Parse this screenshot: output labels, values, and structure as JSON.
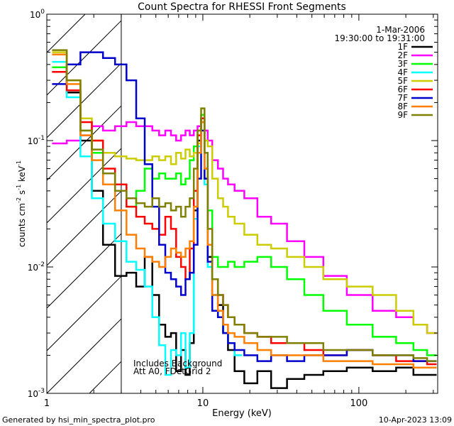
{
  "chart_data": {
    "type": "line",
    "title": "Count Spectra for RHESSI Front Segments",
    "xlabel": "Energy (keV)",
    "ylabel_parts": [
      "counts cm",
      "-2",
      " s",
      "-1",
      " keV",
      "-1"
    ],
    "xscale": "log",
    "yscale": "log",
    "xlim": [
      1,
      320
    ],
    "ylim": [
      0.001,
      1
    ],
    "x_ticks": [
      {
        "value": 1,
        "label": "1"
      },
      {
        "value": 10,
        "label": "10"
      },
      {
        "value": 100,
        "label": "100"
      }
    ],
    "y_ticks": [
      {
        "value": 1,
        "base": "10",
        "exp": "0"
      },
      {
        "value": 0.1,
        "base": "10",
        "exp": "-1"
      },
      {
        "value": 0.01,
        "base": "10",
        "exp": "-2"
      },
      {
        "value": 0.001,
        "base": "10",
        "exp": "-3"
      }
    ],
    "hatched_region": {
      "from": 1,
      "to": 3
    },
    "date": "1-Mar-2006",
    "time_range": "19:30:00 to 19:31:00",
    "annotations": [
      "Includes Background",
      "Att A0, FDetGrid 2"
    ],
    "series": [
      {
        "name": "1F",
        "color": "#000000",
        "x": [
          1.2,
          1.5,
          1.8,
          2.1,
          2.5,
          3,
          3.5,
          4,
          4.5,
          5,
          5.5,
          6,
          6.5,
          7,
          7.5,
          8,
          8.5,
          9,
          9.5,
          10,
          10.5,
          11,
          12,
          13,
          14,
          15,
          17,
          20,
          25,
          30,
          40,
          50,
          70,
          100,
          150,
          200,
          250,
          300
        ],
        "y": [
          0.35,
          0.24,
          0.1,
          0.04,
          0.015,
          0.0085,
          0.009,
          0.007,
          0.012,
          0.006,
          0.0035,
          0.0028,
          0.003,
          0.0015,
          0.0022,
          0.0014,
          0.0025,
          0.028,
          0.1,
          0.15,
          0.05,
          0.012,
          0.006,
          0.005,
          0.003,
          0.0022,
          0.0015,
          0.0012,
          0.0015,
          0.0011,
          0.0013,
          0.0014,
          0.0015,
          0.0016,
          0.0015,
          0.0016,
          0.0014,
          0.0014
        ]
      },
      {
        "name": "2F",
        "color": "#ff00ff",
        "x": [
          1.2,
          1.5,
          1.8,
          2.1,
          2.5,
          3,
          3.5,
          4,
          4.5,
          5,
          5.5,
          6,
          6.5,
          7,
          7.5,
          8,
          8.5,
          9,
          9.5,
          10,
          10.5,
          11,
          12,
          13,
          14,
          15,
          17,
          20,
          25,
          30,
          40,
          50,
          70,
          100,
          150,
          200,
          250,
          300
        ],
        "y": [
          0.095,
          0.1,
          0.11,
          0.13,
          0.12,
          0.13,
          0.14,
          0.13,
          0.13,
          0.12,
          0.11,
          0.12,
          0.11,
          0.1,
          0.11,
          0.12,
          0.11,
          0.12,
          0.13,
          0.14,
          0.12,
          0.1,
          0.07,
          0.06,
          0.05,
          0.045,
          0.04,
          0.035,
          0.025,
          0.022,
          0.016,
          0.012,
          0.0085,
          0.006,
          0.0045,
          0.004,
          0.0035,
          0.003
        ]
      },
      {
        "name": "3F",
        "color": "#00ff00",
        "x": [
          1.2,
          1.5,
          1.8,
          2.1,
          2.5,
          3,
          3.5,
          4,
          4.5,
          5,
          5.5,
          6,
          6.5,
          7,
          7.5,
          8,
          8.5,
          9,
          9.5,
          10,
          10.5,
          11,
          12,
          13,
          14,
          15,
          17,
          20,
          25,
          30,
          40,
          50,
          70,
          100,
          150,
          200,
          250,
          300
        ],
        "y": [
          0.38,
          0.25,
          0.12,
          0.08,
          0.055,
          0.045,
          0.03,
          0.04,
          0.06,
          0.05,
          0.055,
          0.05,
          0.05,
          0.055,
          0.045,
          0.05,
          0.07,
          0.09,
          0.12,
          0.16,
          0.08,
          0.028,
          0.012,
          0.01,
          0.01,
          0.011,
          0.01,
          0.011,
          0.012,
          0.01,
          0.008,
          0.006,
          0.0045,
          0.0035,
          0.0028,
          0.0025,
          0.0022,
          0.002
        ]
      },
      {
        "name": "4F",
        "color": "#00ffff",
        "x": [
          1.2,
          1.5,
          1.8,
          2.1,
          2.5,
          3,
          3.5,
          4,
          4.5,
          5,
          5.5,
          6,
          6.5,
          7,
          7.5,
          8,
          8.5,
          9,
          9.5,
          10,
          10.5,
          11,
          12,
          13,
          14,
          15,
          17
        ],
        "y": [
          0.42,
          0.22,
          0.075,
          0.035,
          0.022,
          0.016,
          0.011,
          0.0095,
          0.007,
          0.004,
          0.0024,
          0.0014,
          0.0022,
          0.002,
          0.003,
          0.0016,
          0.003,
          0.024,
          0.09,
          0.14,
          0.045,
          0.01,
          0.006,
          0.004,
          0.003,
          0.0025,
          0.002
        ]
      },
      {
        "name": "5F",
        "color": "#cccc00",
        "x": [
          1.2,
          1.5,
          1.8,
          2.1,
          2.5,
          3,
          3.5,
          4,
          4.5,
          5,
          5.5,
          6,
          6.5,
          7,
          7.5,
          8,
          8.5,
          9,
          9.5,
          10,
          10.5,
          11,
          12,
          13,
          14,
          15,
          17,
          20,
          25,
          30,
          40,
          50,
          70,
          100,
          150,
          200,
          250,
          300
        ],
        "y": [
          0.5,
          0.3,
          0.15,
          0.1,
          0.08,
          0.075,
          0.072,
          0.07,
          0.07,
          0.075,
          0.07,
          0.075,
          0.065,
          0.08,
          0.072,
          0.085,
          0.075,
          0.08,
          0.095,
          0.12,
          0.1,
          0.09,
          0.05,
          0.035,
          0.03,
          0.025,
          0.022,
          0.018,
          0.015,
          0.014,
          0.012,
          0.01,
          0.008,
          0.007,
          0.006,
          0.0045,
          0.0035,
          0.003
        ]
      },
      {
        "name": "6F",
        "color": "#ff0000",
        "x": [
          1.2,
          1.5,
          1.8,
          2.1,
          2.5,
          3,
          3.5,
          4,
          4.5,
          5,
          5.5,
          6,
          6.5,
          7,
          7.5,
          8,
          8.5,
          9,
          9.5,
          10,
          10.5,
          11,
          12,
          13,
          14,
          15,
          17,
          20,
          25,
          30,
          40,
          50,
          70,
          100,
          150,
          200,
          250,
          300
        ],
        "y": [
          0.35,
          0.25,
          0.14,
          0.1,
          0.06,
          0.045,
          0.03,
          0.025,
          0.022,
          0.02,
          0.018,
          0.025,
          0.02,
          0.012,
          0.01,
          0.008,
          0.014,
          0.04,
          0.11,
          0.15,
          0.06,
          0.015,
          0.008,
          0.006,
          0.005,
          0.004,
          0.0035,
          0.003,
          0.0028,
          0.0025,
          0.0025,
          0.0022,
          0.002,
          0.0022,
          0.002,
          0.0018,
          0.0018,
          0.0017
        ]
      },
      {
        "name": "7F",
        "color": "#0000cc",
        "x": [
          1.2,
          1.5,
          1.8,
          2.1,
          2.5,
          3,
          3.5,
          4,
          4.5,
          5,
          5.5,
          6,
          6.5,
          7,
          7.5,
          8,
          8.5,
          9,
          9.5,
          10,
          10.5,
          11,
          12,
          13,
          14,
          15,
          17,
          20,
          25,
          30,
          40,
          50,
          70,
          100,
          150,
          200,
          250,
          300
        ],
        "y": [
          0.28,
          0.4,
          0.5,
          0.5,
          0.45,
          0.4,
          0.3,
          0.15,
          0.065,
          0.03,
          0.015,
          0.009,
          0.008,
          0.007,
          0.006,
          0.008,
          0.009,
          0.015,
          0.05,
          0.12,
          0.05,
          0.011,
          0.0045,
          0.004,
          0.003,
          0.0025,
          0.0022,
          0.002,
          0.0018,
          0.002,
          0.0018,
          0.002,
          0.002,
          0.0022,
          0.002,
          0.002,
          0.0018,
          0.0018
        ]
      },
      {
        "name": "8F",
        "color": "#ff7f00",
        "x": [
          1.2,
          1.5,
          1.8,
          2.1,
          2.5,
          3,
          3.5,
          4,
          4.5,
          5,
          5.5,
          6,
          6.5,
          7,
          7.5,
          8,
          8.5,
          9,
          9.5,
          10,
          10.5,
          11,
          12,
          13,
          14,
          15,
          17,
          20,
          25,
          30,
          40,
          50,
          70,
          100,
          150,
          200,
          250,
          300
        ],
        "y": [
          0.48,
          0.28,
          0.11,
          0.07,
          0.045,
          0.028,
          0.018,
          0.014,
          0.012,
          0.011,
          0.01,
          0.012,
          0.014,
          0.013,
          0.012,
          0.014,
          0.016,
          0.03,
          0.08,
          0.14,
          0.06,
          0.015,
          0.006,
          0.0045,
          0.0035,
          0.003,
          0.0028,
          0.0025,
          0.0022,
          0.002,
          0.002,
          0.002,
          0.0018,
          0.0018,
          0.0017,
          0.0017,
          0.0016,
          0.0016
        ]
      },
      {
        "name": "9F",
        "color": "#808000",
        "x": [
          1.2,
          1.5,
          1.8,
          2.1,
          2.5,
          3,
          3.5,
          4,
          4.5,
          5,
          5.5,
          6,
          6.5,
          7,
          7.5,
          8,
          8.5,
          9,
          9.5,
          10,
          10.5,
          11,
          12,
          13,
          14,
          15,
          17,
          20,
          25,
          30,
          40,
          50,
          70,
          100,
          150,
          200,
          250,
          300
        ],
        "y": [
          0.52,
          0.3,
          0.12,
          0.085,
          0.055,
          0.04,
          0.035,
          0.032,
          0.03,
          0.035,
          0.03,
          0.032,
          0.028,
          0.03,
          0.025,
          0.03,
          0.035,
          0.06,
          0.12,
          0.18,
          0.08,
          0.02,
          0.008,
          0.006,
          0.005,
          0.004,
          0.0035,
          0.003,
          0.0028,
          0.0028,
          0.0025,
          0.0025,
          0.0022,
          0.0022,
          0.002,
          0.002,
          0.0019,
          0.0018
        ]
      }
    ]
  },
  "footer": {
    "generated_by": "Generated by hsi_min_spectra_plot.pro",
    "timestamp": "10-Apr-2023 13:09"
  }
}
